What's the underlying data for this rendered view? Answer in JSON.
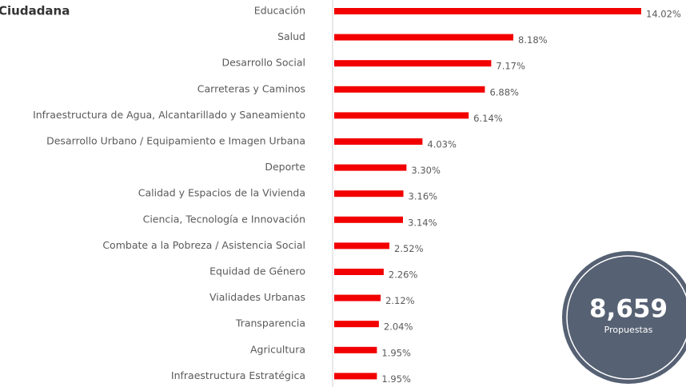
{
  "chart_data": {
    "type": "bar",
    "orientation": "horizontal",
    "title": "Ciudadana",
    "categories": [
      "Educación",
      "Salud",
      "Desarrollo Social",
      "Carreteras y Caminos",
      "Infraestructura de Agua, Alcantarillado y Saneamiento",
      "Desarrollo Urbano / Equipamiento e Imagen Urbana",
      "Deporte",
      "Calidad y Espacios de la Vivienda",
      "Ciencia, Tecnología e Innovación",
      "Combate a la Pobreza / Asistencia Social",
      "Equidad de Género",
      "Vialidades Urbanas",
      "Transparencia",
      "Agricultura",
      "Infraestructura Estratégica"
    ],
    "values": [
      14.02,
      8.18,
      7.17,
      6.88,
      6.14,
      4.03,
      3.3,
      3.16,
      3.14,
      2.52,
      2.26,
      2.12,
      2.04,
      1.95,
      1.95
    ],
    "value_labels": [
      "14.02%",
      "8.18%",
      "7.17%",
      "6.88%",
      "6.14%",
      "4.03%",
      "3.30%",
      "3.16%",
      "3.14%",
      "2.52%",
      "2.26%",
      "2.12%",
      "2.04%",
      "1.95%",
      "1.95%"
    ],
    "color": "#f20000"
  },
  "badge": {
    "value": "8,659",
    "label": "Propuestas"
  }
}
